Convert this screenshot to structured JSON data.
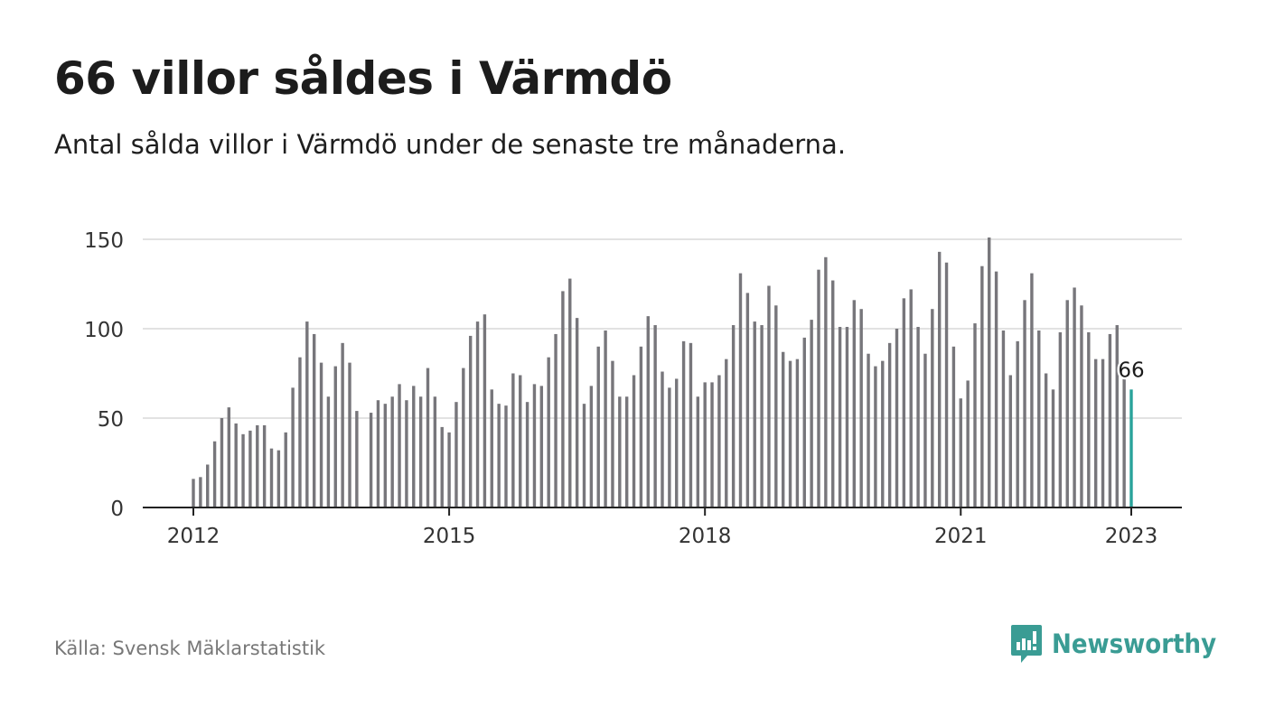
{
  "title": "66 villor såldes i Värmdö",
  "subtitle": "Antal sålda villor i Värmdö under de senaste tre månaderna.",
  "source": "Källa: Svensk Mäklarstatistik",
  "brand": {
    "name": "Newsworthy",
    "icon": "newsworthy-logo-icon",
    "color": "#3a9c94"
  },
  "colors": {
    "bar": "#77767b",
    "highlight": "#2aa39b",
    "grid": "#d8d8d8",
    "axis": "#222222"
  },
  "chart_data": {
    "type": "bar",
    "title": "66 villor såldes i Värmdö",
    "subtitle": "Antal sålda villor i Värmdö under de senaste tre månaderna.",
    "x_start": "2012-01",
    "x_ticks": [
      "2012",
      "2015",
      "2018",
      "2021",
      "2023"
    ],
    "y_ticks": [
      0,
      50,
      100,
      150
    ],
    "ylim": [
      0,
      150
    ],
    "grid": true,
    "values": [
      16,
      17,
      24,
      37,
      50,
      56,
      47,
      41,
      43,
      46,
      46,
      33,
      32,
      42,
      67,
      84,
      104,
      97,
      81,
      62,
      79,
      92,
      81,
      54,
      null,
      53,
      60,
      58,
      62,
      69,
      60,
      68,
      62,
      78,
      62,
      45,
      42,
      59,
      78,
      96,
      104,
      108,
      66,
      58,
      57,
      75,
      74,
      59,
      69,
      68,
      84,
      97,
      121,
      128,
      106,
      58,
      68,
      90,
      99,
      82,
      62,
      62,
      74,
      90,
      107,
      102,
      76,
      67,
      72,
      93,
      92,
      62,
      70,
      70,
      74,
      83,
      102,
      131,
      120,
      104,
      102,
      124,
      113,
      87,
      82,
      83,
      95,
      105,
      133,
      140,
      127,
      101,
      101,
      116,
      111,
      86,
      79,
      82,
      92,
      100,
      117,
      122,
      101,
      86,
      111,
      143,
      137,
      90,
      61,
      71,
      103,
      135,
      151,
      132,
      99,
      74,
      93,
      116,
      131,
      99,
      75,
      66,
      98,
      116,
      123,
      113,
      98,
      83,
      83,
      97,
      102,
      72,
      66
    ],
    "last_value_label": "66"
  }
}
